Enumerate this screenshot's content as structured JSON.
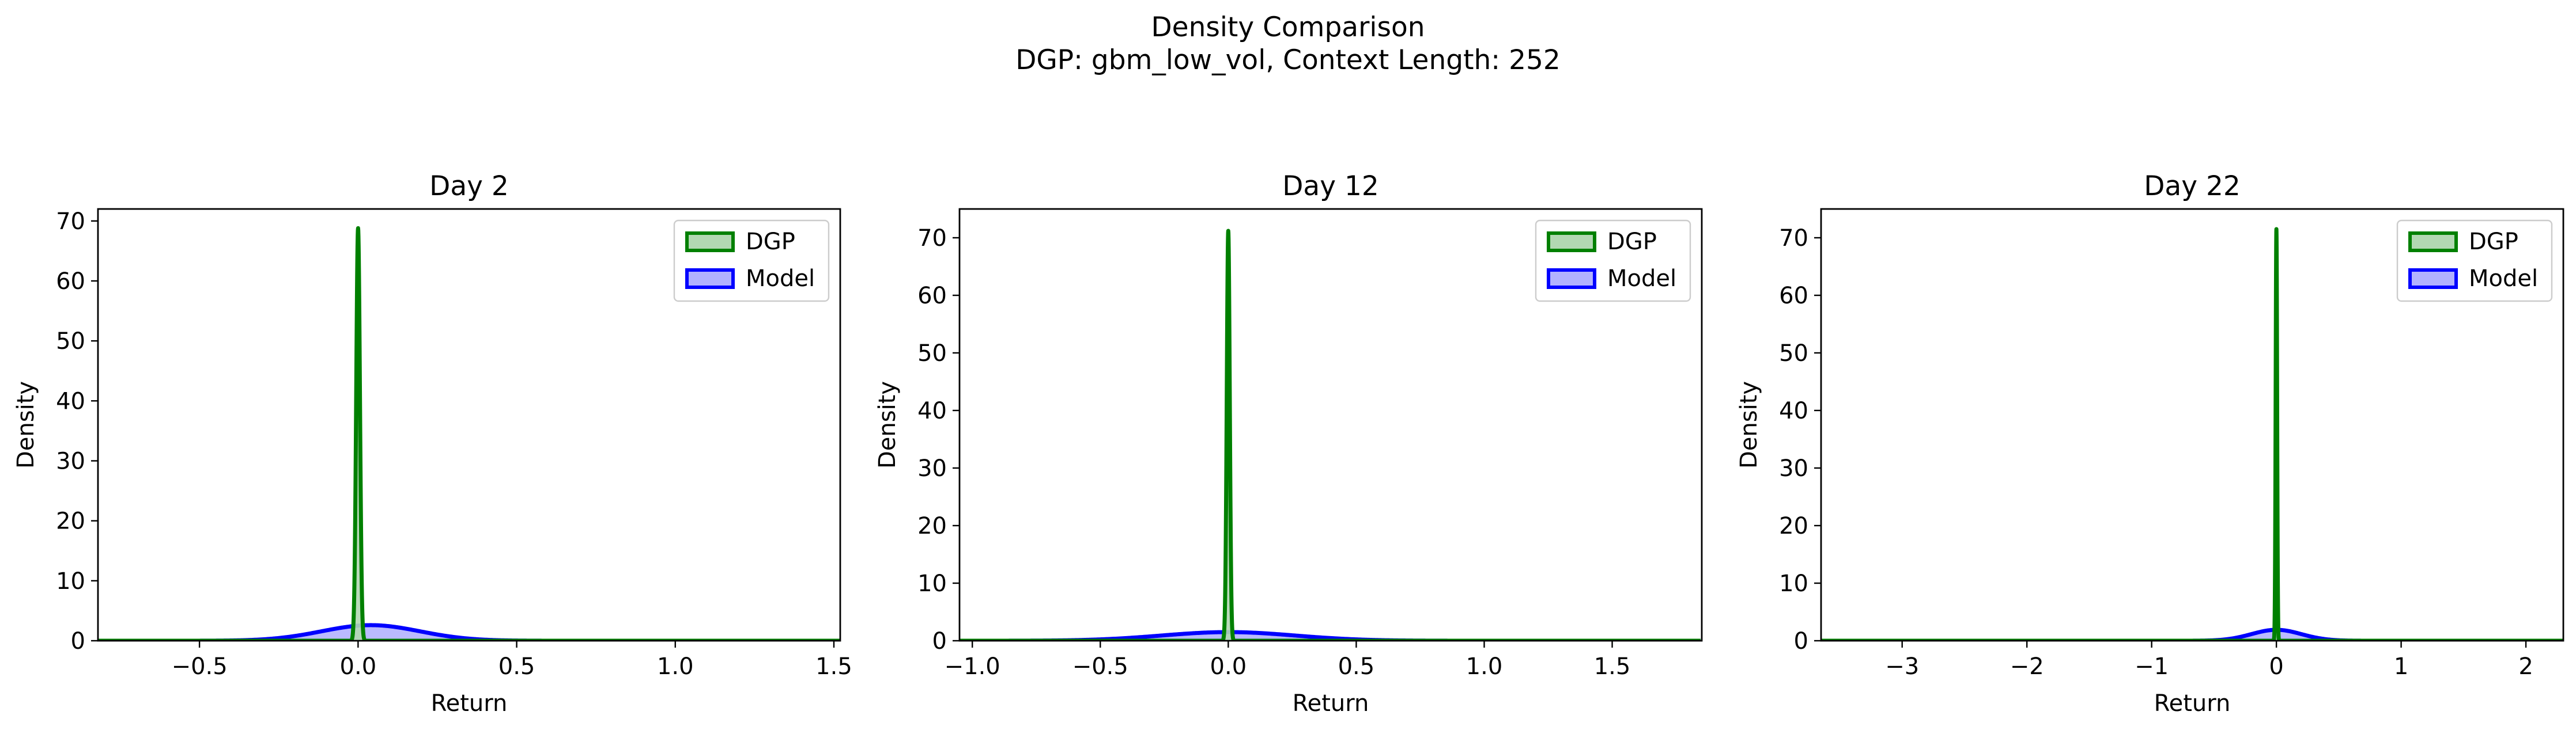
{
  "figure": {
    "suptitle_line1": "Density Comparison",
    "suptitle_line2": "DGP: gbm_low_vol, Context Length: 252"
  },
  "colors": {
    "dgp_line": "#008000",
    "dgp_fill": "#b2d8b2",
    "model_line": "#0000ff",
    "model_fill": "#b2b2ff"
  },
  "chart_data": [
    {
      "type": "area",
      "title": "Day 2",
      "xlabel": "Return",
      "ylabel": "Density",
      "xlim": [
        -0.82,
        1.52
      ],
      "ylim": [
        0,
        72
      ],
      "xticks": [
        -0.5,
        0.0,
        0.5,
        1.0,
        1.5
      ],
      "xtick_labels": [
        "−0.5",
        "0.0",
        "0.5",
        "1.0",
        "1.5"
      ],
      "yticks": [
        0,
        10,
        20,
        30,
        40,
        50,
        60,
        70
      ],
      "ytick_labels": [
        "0",
        "10",
        "20",
        "30",
        "40",
        "50",
        "60",
        "70"
      ],
      "grid": false,
      "legend_position": "top-right",
      "series": [
        {
          "name": "DGP",
          "kind": "gaussian",
          "mean": 0.0,
          "std": 0.0058,
          "peak": 68.8,
          "color": "#008000",
          "fill": "#b2d8b2"
        },
        {
          "name": "Model",
          "kind": "gaussian",
          "mean": 0.04,
          "std": 0.155,
          "peak": 2.6,
          "color": "#0000ff",
          "fill": "#b2b2ff"
        }
      ]
    },
    {
      "type": "area",
      "title": "Day 12",
      "xlabel": "Return",
      "ylabel": "Density",
      "xlim": [
        -1.05,
        1.85
      ],
      "ylim": [
        0,
        75
      ],
      "xticks": [
        -1.0,
        -0.5,
        0.0,
        0.5,
        1.0,
        1.5
      ],
      "xtick_labels": [
        "−1.0",
        "−0.5",
        "0.0",
        "0.5",
        "1.0",
        "1.5"
      ],
      "yticks": [
        0,
        10,
        20,
        30,
        40,
        50,
        60,
        70
      ],
      "ytick_labels": [
        "0",
        "10",
        "20",
        "30",
        "40",
        "50",
        "60",
        "70"
      ],
      "grid": false,
      "legend_position": "top-right",
      "series": [
        {
          "name": "DGP",
          "kind": "gaussian",
          "mean": 0.0,
          "std": 0.0058,
          "peak": 71.2,
          "color": "#008000",
          "fill": "#b2d8b2"
        },
        {
          "name": "Model",
          "kind": "gaussian",
          "mean": 0.0,
          "std": 0.26,
          "peak": 1.5,
          "color": "#0000ff",
          "fill": "#b2b2ff"
        }
      ]
    },
    {
      "type": "area",
      "title": "Day 22",
      "xlabel": "Return",
      "ylabel": "Density",
      "xlim": [
        -3.65,
        2.3
      ],
      "ylim": [
        0,
        75
      ],
      "xticks": [
        -3,
        -2,
        -1,
        0,
        1,
        2
      ],
      "xtick_labels": [
        "−3",
        "−2",
        "−1",
        "0",
        "1",
        "2"
      ],
      "yticks": [
        0,
        10,
        20,
        30,
        40,
        50,
        60,
        70
      ],
      "ytick_labels": [
        "0",
        "10",
        "20",
        "30",
        "40",
        "50",
        "60",
        "70"
      ],
      "grid": false,
      "legend_position": "top-right",
      "series": [
        {
          "name": "DGP",
          "kind": "gaussian",
          "mean": 0.0,
          "std": 0.0058,
          "peak": 71.5,
          "color": "#008000",
          "fill": "#b2d8b2"
        },
        {
          "name": "Model",
          "kind": "gaussian",
          "mean": 0.0,
          "std": 0.2,
          "peak": 1.9,
          "color": "#0000ff",
          "fill": "#b2b2ff"
        }
      ]
    }
  ]
}
